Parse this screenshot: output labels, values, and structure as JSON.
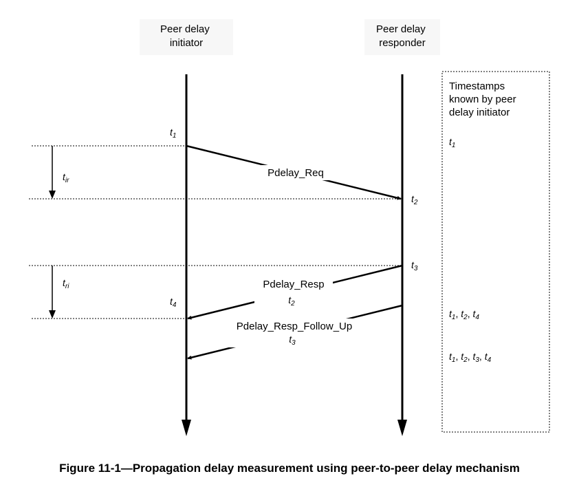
{
  "participants": {
    "initiator": [
      "Peer delay",
      "initiator"
    ],
    "responder": [
      "Peer delay",
      "responder"
    ]
  },
  "messages": {
    "req": "Pdelay_Req",
    "resp": "Pdelay_Resp",
    "follow_up": "Pdelay_Resp_Follow_Up"
  },
  "box": {
    "title": [
      "Timestamps",
      "known by peer",
      "delay initiator"
    ]
  },
  "timestamps": {
    "t": "t",
    "s1": "1",
    "s2": "2",
    "s3": "3",
    "s4": "4",
    "ir": "ir",
    "ri": "ri",
    "sep": ", "
  },
  "caption": "Figure 11-1—Propagation delay measurement using peer-to-peer delay mechanism",
  "colors": {
    "line": "#000000",
    "background": "#ffffff",
    "header_bg": "#f7f7f7"
  }
}
